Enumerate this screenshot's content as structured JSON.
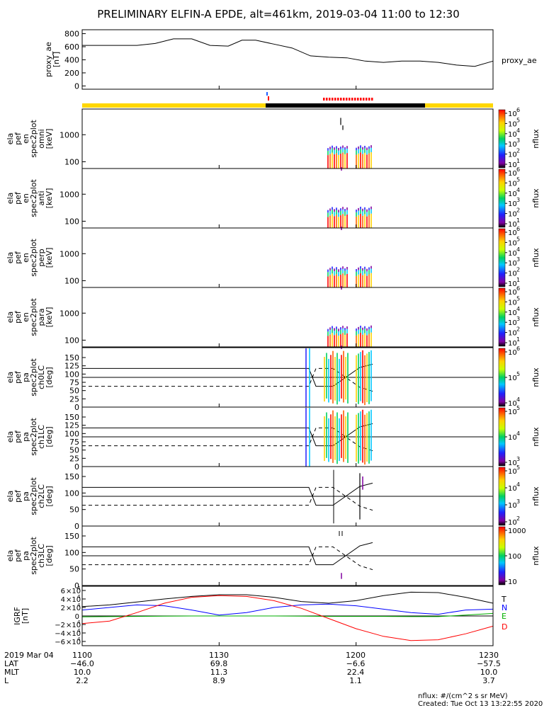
{
  "title": "PRELIMINARY ELFIN-A EPDE, alt=461km, 2019-03-04 11:00 to 12:30",
  "colors": {
    "sunlight_bar": "#ffd700",
    "shadow_bar": "#000000",
    "spin_flag": "#2060ff",
    "science_flag": "#ff0000",
    "igrf_t": "#000000",
    "igrf_n": "#0000ff",
    "igrf_e": "#00b000",
    "igrf_d": "#ff0000"
  },
  "chart_data": [
    {
      "type": "line",
      "panel": "proxy_ae",
      "ylabel": [
        "proxy_ae",
        "[nT]"
      ],
      "side_label": "proxy_ae",
      "ylim": [
        -50,
        860
      ],
      "yticks": [
        0,
        200,
        400,
        600,
        800
      ],
      "x_minutes": [
        0,
        6,
        12,
        16,
        20,
        24,
        28,
        32,
        35,
        38,
        42,
        46,
        50,
        54,
        58,
        62,
        66,
        70,
        74,
        78,
        82,
        86,
        90
      ],
      "values": [
        620,
        620,
        620,
        650,
        720,
        720,
        620,
        610,
        700,
        700,
        640,
        580,
        460,
        440,
        430,
        380,
        360,
        380,
        380,
        360,
        320,
        300,
        380
      ]
    },
    {
      "type": "heatmap",
      "panel": "ela_pef_en_spec2plot_omni",
      "ylabel": [
        "ela",
        "pef",
        "en",
        "spec2plot",
        "omni",
        "[keV]"
      ],
      "yscale": "log",
      "yticks": [
        "100",
        "1000"
      ],
      "colorbar": {
        "label": "nflux",
        "ticks": [
          "10",
          "10",
          "10",
          "10",
          "10",
          "10"
        ],
        "exponents": [
          "1",
          "2",
          "3",
          "4",
          "5",
          "6"
        ]
      }
    },
    {
      "type": "heatmap",
      "panel": "ela_pef_en_spec2plot_anti",
      "ylabel": [
        "ela",
        "pef",
        "en",
        "spec2plot",
        "anti",
        "[keV]"
      ],
      "yscale": "log",
      "yticks": [
        "100",
        "1000"
      ],
      "colorbar": {
        "label": "nflux",
        "ticks": [
          "10",
          "10",
          "10",
          "10",
          "10",
          "10"
        ],
        "exponents": [
          "1",
          "2",
          "3",
          "4",
          "5",
          "6"
        ]
      }
    },
    {
      "type": "heatmap",
      "panel": "ela_pef_en_spec2plot_perp",
      "ylabel": [
        "ela",
        "pef",
        "en",
        "spec2plot",
        "perp",
        "[keV]"
      ],
      "yscale": "log",
      "yticks": [
        "100",
        "1000"
      ],
      "colorbar": {
        "label": "nflux",
        "ticks": [
          "10",
          "10",
          "10",
          "10",
          "10",
          "10"
        ],
        "exponents": [
          "1",
          "2",
          "3",
          "4",
          "5",
          "6"
        ]
      }
    },
    {
      "type": "heatmap",
      "panel": "ela_pef_en_spec2plot_para",
      "ylabel": [
        "ela",
        "pef",
        "en",
        "spec2plot",
        "para",
        "[keV]"
      ],
      "yscale": "log",
      "yticks": [
        "100",
        "1000"
      ],
      "colorbar": {
        "label": "nflux",
        "ticks": [
          "10",
          "10",
          "10",
          "10",
          "10",
          "10"
        ],
        "exponents": [
          "1",
          "2",
          "3",
          "4",
          "5",
          "6"
        ]
      }
    },
    {
      "type": "heatmap",
      "panel": "ela_pef_pa_spec2plot_ch0LC",
      "ylabel": [
        "ela",
        "pef",
        "pa",
        "spec2plot",
        "ch0LC",
        "[deg]"
      ],
      "ylim": [
        0,
        180
      ],
      "yticks": [
        "0",
        "25",
        "50",
        "75",
        "100",
        "125",
        "150"
      ],
      "colorbar": {
        "label": "nflux",
        "ticks": [
          "10",
          "10",
          "10"
        ],
        "exponents": [
          "4",
          "5",
          "6"
        ]
      }
    },
    {
      "type": "heatmap",
      "panel": "ela_pef_pa_spec2plot_ch1LC",
      "ylabel": [
        "ela",
        "pef",
        "pa",
        "spec2plot",
        "ch1LC",
        "[deg]"
      ],
      "ylim": [
        0,
        180
      ],
      "yticks": [
        "0",
        "25",
        "50",
        "75",
        "100",
        "125",
        "150"
      ],
      "colorbar": {
        "label": "nflux",
        "ticks": [
          "10",
          "10",
          "10"
        ],
        "exponents": [
          "3",
          "4",
          "5"
        ]
      }
    },
    {
      "type": "heatmap",
      "panel": "ela_pef_pa_spec2plot_ch2LC",
      "ylabel": [
        "ela",
        "pef",
        "pa",
        "spec2plot",
        "ch2LC",
        "[deg]"
      ],
      "ylim": [
        0,
        180
      ],
      "yticks": [
        "0",
        "50",
        "100",
        "150"
      ],
      "colorbar": {
        "label": "nflux",
        "ticks": [
          "10",
          "10",
          "10",
          "10"
        ],
        "exponents": [
          "2",
          "3",
          "4",
          "5"
        ]
      }
    },
    {
      "type": "heatmap",
      "panel": "ela_pef_pa_spec2plot_ch3LC",
      "ylabel": [
        "ela",
        "pef",
        "pa",
        "spec2plot",
        "ch3LC",
        "[deg]"
      ],
      "ylim": [
        0,
        180
      ],
      "yticks": [
        "0",
        "50",
        "100",
        "150"
      ],
      "colorbar": {
        "label": "nflux",
        "ticks": [
          "10",
          "100",
          "1000"
        ]
      }
    },
    {
      "type": "line",
      "panel": "IGRF",
      "ylabel": [
        "IGRF",
        "[nT]"
      ],
      "ylim": [
        -70000,
        70000
      ],
      "ytick_values": [
        -60000,
        -40000,
        -20000,
        0,
        20000,
        40000,
        60000
      ],
      "ytick_mantissa": [
        "−6",
        "−4",
        "−2",
        "0",
        "2",
        "4",
        "6"
      ],
      "ytick_exponent": "4",
      "legend": [
        "T",
        "N",
        "E",
        "D"
      ],
      "x_minutes": [
        0,
        6,
        12,
        18,
        24,
        30,
        36,
        42,
        48,
        54,
        60,
        66,
        72,
        78,
        84,
        90
      ],
      "series": [
        {
          "name": "T",
          "color": "#000000",
          "values": [
            22000,
            26000,
            33000,
            40000,
            46000,
            50000,
            50000,
            44000,
            34000,
            30000,
            36000,
            48000,
            56000,
            55000,
            44000,
            30000
          ]
        },
        {
          "name": "N",
          "color": "#0000ff",
          "values": [
            14000,
            20000,
            26000,
            24000,
            14000,
            2000,
            8000,
            20000,
            26000,
            28000,
            24000,
            16000,
            8000,
            4000,
            14000,
            16000
          ]
        },
        {
          "name": "E",
          "color": "#00b000",
          "values": [
            -2000,
            -1500,
            -1000,
            -500,
            0,
            0,
            0,
            0,
            -500,
            -1000,
            -1000,
            -1000,
            -1500,
            -1500,
            2000,
            6000
          ]
        },
        {
          "name": "D",
          "color": "#ff0000",
          "values": [
            -18000,
            -12000,
            8000,
            30000,
            44000,
            48000,
            46000,
            36000,
            18000,
            -6000,
            -30000,
            -48000,
            -58000,
            -56000,
            -42000,
            -24000
          ]
        }
      ]
    }
  ],
  "x_axis": {
    "row_labels": [
      "2019 Mar 04",
      "LAT",
      "MLT",
      "L"
    ],
    "columns": [
      {
        "tick": "1100",
        "lat": "−46.0",
        "mlt": "10.0",
        "l": "2.2"
      },
      {
        "tick": "1130",
        "lat": "69.8",
        "mlt": "11.3",
        "l": "8.9"
      },
      {
        "tick": "1200",
        "lat": "−6.6",
        "mlt": "22.4",
        "l": "1.1"
      },
      {
        "tick": "1230",
        "lat": "−57.5",
        "mlt": "10.0",
        "l": "3.7"
      }
    ]
  },
  "footer": {
    "units": "nflux: #/(cm^2 s sr MeV)",
    "created": "Created: Tue Oct 13 13:22:55 2020"
  }
}
